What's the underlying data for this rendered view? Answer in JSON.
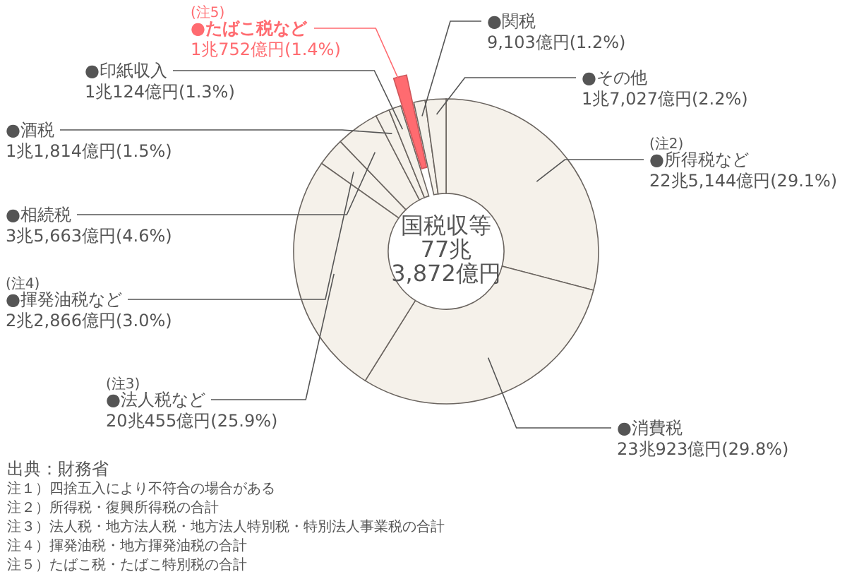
{
  "chart_data": {
    "type": "donut",
    "title": "国税収等",
    "subtitle": "77兆\n3,872億円",
    "categories": [
      "●所得税など",
      "●消費税",
      "●法人税など",
      "●揮発油税など",
      "●相続税",
      "●酒税",
      "●印紙収入",
      "●たばこ税など",
      "●関税",
      "●その他"
    ],
    "values": [
      29.1,
      29.8,
      25.9,
      3.0,
      4.6,
      1.5,
      1.3,
      1.4,
      1.2,
      2.2
    ],
    "value_labels": [
      "22兆5,144億円(29.1%)",
      "23兆923億円(29.8%)",
      "20兆455億円(25.9%)",
      "2兆2,866億円(3.0%)",
      "3兆5,663億円(4.6%)",
      "1兆1,814億円(1.5%)",
      "1兆124億円(1.3%)",
      "1兆752億円(1.4%)",
      "9,103億円(1.2%)",
      "1兆7,027億円(2.2%)"
    ],
    "colors": [
      "#f5f1ea",
      "#f5f1ea",
      "#f5f1ea",
      "#f5f1ea",
      "#f5f1ea",
      "#f5f1ea",
      "#f5f1ea",
      "#ff6b70",
      "#f5f1ea",
      "#f5f1ea"
    ],
    "annotations": [
      {
        "text": "(注2)",
        "x": "●所得税など"
      },
      {
        "text": "(注3)",
        "x": "●法人税など"
      },
      {
        "text": "(注4)",
        "x": "●揮発油税など"
      },
      {
        "text": "(注5)",
        "x": "●たばこ税など"
      },
      "出典：財務省",
      "注１）四捨五入により不符合の場合がある",
      "注２）所得税・復興所得税の合計",
      "注３）法人税・地方法人税・地方法人特別税・特別法人事業税の合計",
      "注４）揮発油税・地方揮発油税の合計",
      "注５）たばこ税・たばこ特別税の合計"
    ]
  }
}
